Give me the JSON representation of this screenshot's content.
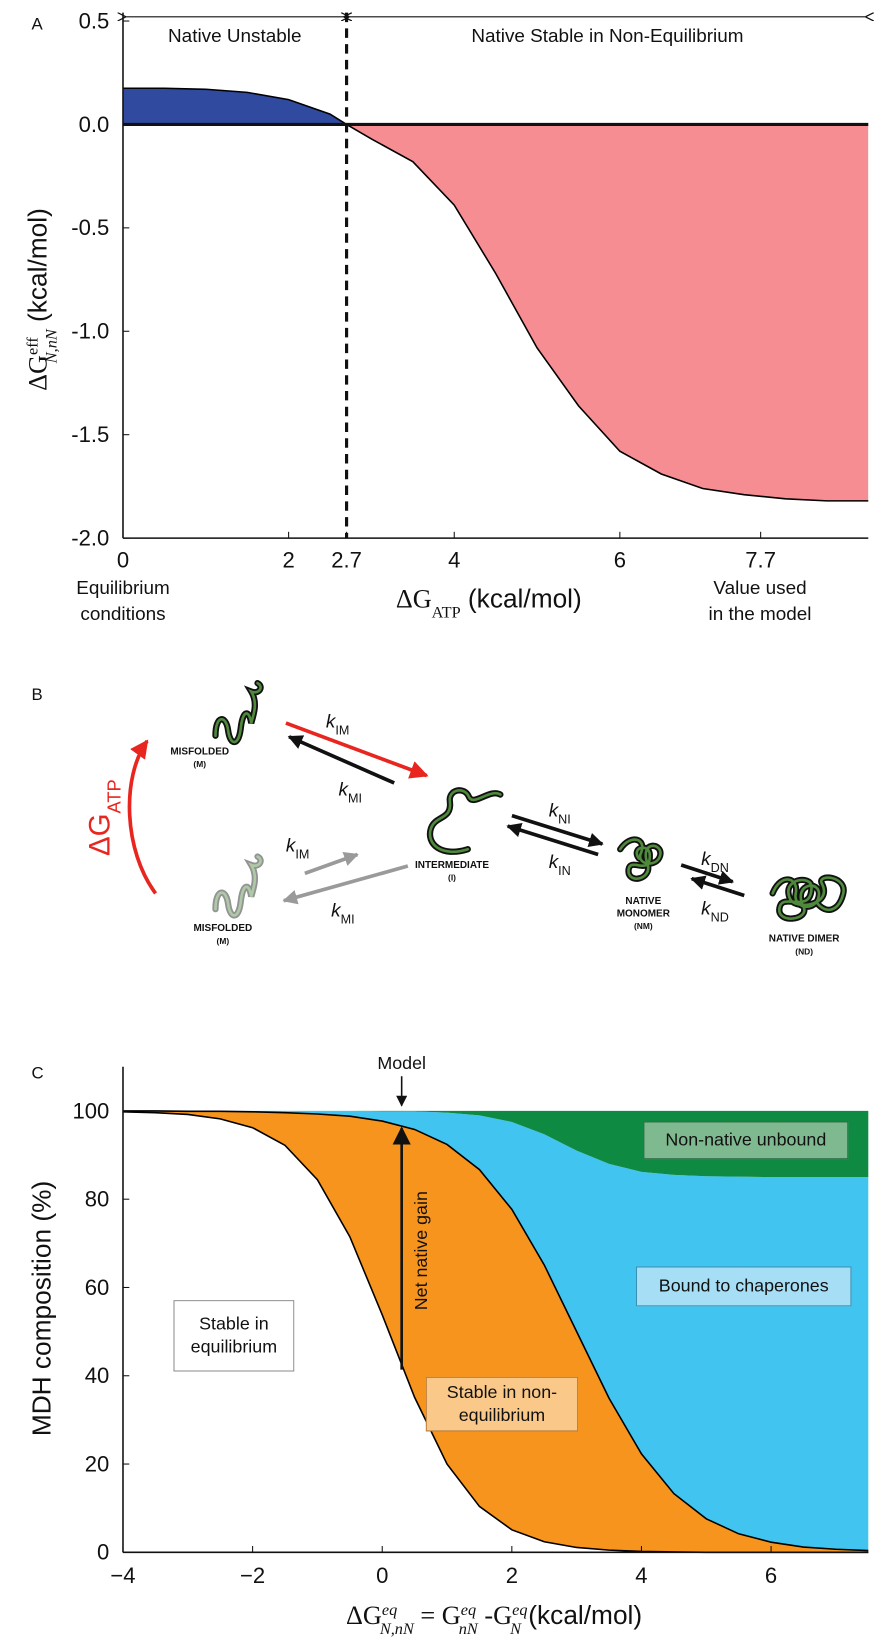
{
  "chart_data": [
    {
      "type": "line",
      "label": "A",
      "x": [
        0,
        0.5,
        1,
        1.5,
        2,
        2.5,
        2.7,
        3,
        3.5,
        4,
        4.5,
        5,
        5.5,
        6,
        6.5,
        7,
        7.5,
        8,
        8.5,
        9
      ],
      "values": [
        0.175,
        0.175,
        0.17,
        0.155,
        0.12,
        0.05,
        0.0,
        -0.07,
        -0.18,
        -0.39,
        -0.72,
        -1.08,
        -1.36,
        -1.58,
        -1.69,
        -1.76,
        -1.79,
        -1.81,
        -1.82,
        -1.82
      ],
      "color": "#000000",
      "positive_color": "#2f4a9f",
      "negative_color": "#f58d92",
      "xlim": [
        0,
        9
      ],
      "ylim": [
        -2.0,
        0.5
      ],
      "xticks": [
        0,
        2,
        2.7,
        4,
        6,
        7.7
      ],
      "yticks": [
        {
          "value": 0.5,
          "label": "0.5"
        },
        {
          "value": 0.0,
          "label": "0.0"
        },
        {
          "value": -0.5,
          "label": "-0.5"
        },
        {
          "value": -1.0,
          "label": "-1.0"
        },
        {
          "value": -1.5,
          "label": "-1.5"
        },
        {
          "value": -2.0,
          "label": "-2.0"
        }
      ],
      "threshold_x": 2.7,
      "regions": [
        "Native Unstable",
        "Native Stable in Non-Equilibrium"
      ],
      "x_notes": [
        [
          "Equilibrium",
          "conditions"
        ],
        [
          "Value used",
          "in the model"
        ]
      ],
      "xlabel": [
        {
          "text": "ΔG",
          "math": true
        },
        {
          "text": "ATP",
          "pos": "sub",
          "math": true
        },
        {
          "text": "  (kcal/mol)"
        }
      ],
      "ylabel": [
        {
          "text": "ΔG",
          "math": true
        },
        {
          "text": "eff",
          "pos": "sup",
          "math": true
        },
        {
          "text": "N,nN",
          "pos": "sub",
          "math": true,
          "italic": true
        },
        {
          "text": "   (kcal/mol)"
        }
      ]
    },
    {
      "type": "stacked_area",
      "label": "C",
      "x": [
        -4,
        -3.5,
        -3,
        -2.5,
        -2,
        -1.5,
        -1,
        -0.5,
        0,
        0.5,
        1,
        1.5,
        2,
        2.5,
        3,
        3.5,
        4,
        4.5,
        5,
        5.5,
        6,
        6.5,
        7,
        7.5
      ],
      "series": [
        {
          "name": "Stable in equilibrium",
          "color": "#ffffff",
          "edgecolor": "#000000",
          "values": [
            99.8,
            99.6,
            99.2,
            98.2,
            96.2,
            92.2,
            84.4,
            71.5,
            53.8,
            35.1,
            20.0,
            10.4,
            5.1,
            2.4,
            1.1,
            0.5,
            0.2,
            0.1,
            0,
            0,
            0,
            0,
            0,
            0
          ]
        },
        {
          "name": "Stable in non-equilibrium",
          "color": "#f7941d",
          "edgecolor": "#000000",
          "values": [
            0.2,
            0.4,
            0.7,
            1.7,
            3.6,
            7.4,
            14.9,
            27.3,
            43.9,
            60.7,
            72.4,
            76.3,
            72.6,
            62.7,
            48.9,
            34.4,
            22.1,
            13.2,
            7.6,
            4.2,
            2.3,
            1.2,
            0.7,
            0.4
          ]
        },
        {
          "name": "Bound to chaperones",
          "color": "#41c4f0",
          "values": [
            0,
            0,
            0.1,
            0.1,
            0.2,
            0.4,
            0.7,
            1.2,
            2.2,
            4.1,
            7.2,
            12.3,
            19.8,
            29.6,
            41.0,
            53.1,
            63.9,
            72.2,
            77.6,
            80.9,
            82.7,
            83.8,
            84.3,
            84.6
          ]
        },
        {
          "name": "Non-native unbound",
          "color": "#0f8a43",
          "values": [
            0,
            0,
            0,
            0,
            0,
            0,
            0,
            0,
            0.1,
            0.1,
            0.4,
            1.0,
            2.5,
            5.3,
            9.0,
            12.0,
            13.8,
            14.5,
            14.8,
            14.9,
            15.0,
            15.0,
            15.0,
            15.0
          ]
        }
      ],
      "xlim": [
        -4,
        7.5
      ],
      "ylim": [
        0,
        110
      ],
      "xticks": [
        {
          "value": -4,
          "label": "−4"
        },
        {
          "value": -2,
          "label": "−2"
        },
        0,
        2,
        4,
        6
      ],
      "yticks": [
        0,
        20,
        40,
        60,
        80,
        100
      ],
      "model_x": 0.3,
      "model_label": "Model",
      "arrow_label": "Net native gain",
      "ylabel": [
        {
          "text": "MDH composition (%)"
        }
      ],
      "xlabel": [
        {
          "text": "ΔG",
          "math": true
        },
        {
          "text": "eq",
          "pos": "sup",
          "math": true,
          "italic": true
        },
        {
          "text": "N,nN",
          "pos": "sub",
          "math": true,
          "italic": true
        },
        {
          "text": " = G",
          "math": true
        },
        {
          "text": "eq",
          "pos": "sup",
          "math": true,
          "italic": true
        },
        {
          "text": "nN",
          "pos": "sub",
          "math": true,
          "italic": true
        },
        {
          "text": " -G",
          "math": true
        },
        {
          "text": "eq",
          "pos": "sup",
          "math": true,
          "italic": true
        },
        {
          "text": "N",
          "pos": "sub",
          "math": true,
          "italic": true
        },
        {
          "text": "   (kcal/mol)"
        }
      ]
    }
  ],
  "diagram": {
    "label": "B",
    "nodes": [
      {
        "lines": [
          "MISFOLDED",
          "(M)"
        ]
      },
      {
        "lines": [
          "INTERMEDIATE",
          "(I)"
        ]
      },
      {
        "lines": [
          "NATIVE",
          "MONOMER",
          "(NM)"
        ]
      },
      {
        "lines": [
          "NATIVE DIMER",
          "(ND)"
        ]
      },
      {
        "lines": [
          "MISFOLDED",
          "(M)"
        ]
      }
    ],
    "rates": [
      {
        "k": "k",
        "sub": "IM"
      },
      {
        "k": "k",
        "sub": "MI"
      },
      {
        "k": "k",
        "sub": "IM"
      },
      {
        "k": "k",
        "sub": "MI"
      },
      {
        "k": "k",
        "sub": "NI"
      },
      {
        "k": "k",
        "sub": "IN"
      },
      {
        "k": "k",
        "sub": "DN"
      },
      {
        "k": "k",
        "sub": "ND"
      }
    ],
    "driver": [
      {
        "text": "ΔG"
      },
      {
        "text": "ATP",
        "pos": "sub"
      }
    ]
  }
}
